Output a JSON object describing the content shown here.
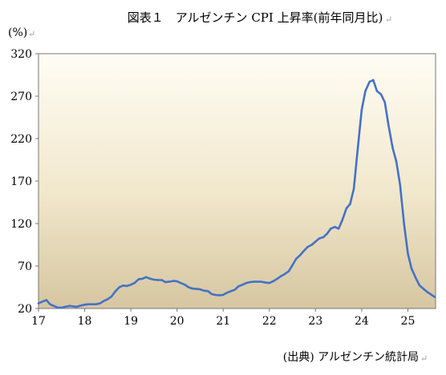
{
  "chart_data": {
    "type": "line",
    "title": "図表１　アルゼンチン CPI 上昇率(前年同月比)",
    "ylabel": "(%)",
    "xlabel": "",
    "source": "(出典) アルゼンチン統計局",
    "xlim": [
      17,
      25.6
    ],
    "ylim": [
      20,
      320
    ],
    "yticks": [
      20,
      70,
      120,
      170,
      220,
      270,
      320
    ],
    "xticks": [
      17,
      18,
      19,
      20,
      21,
      22,
      23,
      24,
      25
    ],
    "x_tick_labels": [
      "17",
      "18",
      "19",
      "20",
      "21",
      "22",
      "23",
      "24",
      "25"
    ],
    "y_tick_labels": [
      "20",
      "70",
      "120",
      "170",
      "220",
      "270",
      "320"
    ],
    "grid": false,
    "line_color": "#4472c4",
    "series": [
      {
        "name": "",
        "points": [
          [
            17.0,
            26
          ],
          [
            17.08,
            28
          ],
          [
            17.17,
            30
          ],
          [
            17.25,
            25
          ],
          [
            17.33,
            23
          ],
          [
            17.42,
            21
          ],
          [
            17.5,
            21
          ],
          [
            17.58,
            22
          ],
          [
            17.67,
            23
          ],
          [
            17.75,
            22.5
          ],
          [
            17.83,
            22
          ],
          [
            17.92,
            23.5
          ],
          [
            18.0,
            24.5
          ],
          [
            18.08,
            25
          ],
          [
            18.17,
            25
          ],
          [
            18.25,
            25
          ],
          [
            18.33,
            26
          ],
          [
            18.42,
            29
          ],
          [
            18.5,
            31
          ],
          [
            18.58,
            34
          ],
          [
            18.67,
            40.5
          ],
          [
            18.75,
            45
          ],
          [
            18.83,
            47
          ],
          [
            18.92,
            46.5
          ],
          [
            19.0,
            48
          ],
          [
            19.08,
            50
          ],
          [
            19.17,
            54.5
          ],
          [
            19.25,
            55
          ],
          [
            19.33,
            57
          ],
          [
            19.42,
            55
          ],
          [
            19.5,
            54
          ],
          [
            19.58,
            53.5
          ],
          [
            19.67,
            53.5
          ],
          [
            19.75,
            51
          ],
          [
            19.83,
            51.5
          ],
          [
            19.92,
            52.5
          ],
          [
            20.0,
            52
          ],
          [
            20.08,
            50
          ],
          [
            20.17,
            48
          ],
          [
            20.25,
            45
          ],
          [
            20.33,
            43.5
          ],
          [
            20.42,
            43
          ],
          [
            20.5,
            42.5
          ],
          [
            20.58,
            41
          ],
          [
            20.67,
            40.5
          ],
          [
            20.75,
            37
          ],
          [
            20.83,
            36
          ],
          [
            20.92,
            35.5
          ],
          [
            21.0,
            36
          ],
          [
            21.08,
            38.5
          ],
          [
            21.17,
            40.5
          ],
          [
            21.25,
            42
          ],
          [
            21.33,
            46
          ],
          [
            21.42,
            48
          ],
          [
            21.5,
            50
          ],
          [
            21.58,
            51
          ],
          [
            21.67,
            51.5
          ],
          [
            21.75,
            51.5
          ],
          [
            21.83,
            51.5
          ],
          [
            21.92,
            50.5
          ],
          [
            22.0,
            50
          ],
          [
            22.08,
            52
          ],
          [
            22.17,
            55
          ],
          [
            22.25,
            58
          ],
          [
            22.33,
            60.5
          ],
          [
            22.42,
            64
          ],
          [
            22.5,
            71
          ],
          [
            22.58,
            78.5
          ],
          [
            22.67,
            83
          ],
          [
            22.75,
            88
          ],
          [
            22.83,
            92.5
          ],
          [
            22.92,
            95
          ],
          [
            23.0,
            98.8
          ],
          [
            23.08,
            102.5
          ],
          [
            23.17,
            104
          ],
          [
            23.25,
            108
          ],
          [
            23.33,
            114
          ],
          [
            23.42,
            116
          ],
          [
            23.5,
            114
          ],
          [
            23.58,
            124
          ],
          [
            23.67,
            138
          ],
          [
            23.75,
            143
          ],
          [
            23.83,
            161
          ],
          [
            23.92,
            211
          ],
          [
            24.0,
            254
          ],
          [
            24.08,
            276
          ],
          [
            24.17,
            287
          ],
          [
            24.25,
            289
          ],
          [
            24.33,
            276
          ],
          [
            24.42,
            272
          ],
          [
            24.5,
            263
          ],
          [
            24.58,
            236
          ],
          [
            24.67,
            209
          ],
          [
            24.75,
            193
          ],
          [
            24.83,
            166
          ],
          [
            24.92,
            118
          ],
          [
            25.0,
            84.5
          ],
          [
            25.08,
            66.9
          ],
          [
            25.17,
            55.9
          ],
          [
            25.25,
            47.3
          ],
          [
            25.33,
            43.5
          ],
          [
            25.42,
            39.4
          ],
          [
            25.5,
            36.6
          ],
          [
            25.58,
            33.6
          ]
        ]
      }
    ]
  }
}
